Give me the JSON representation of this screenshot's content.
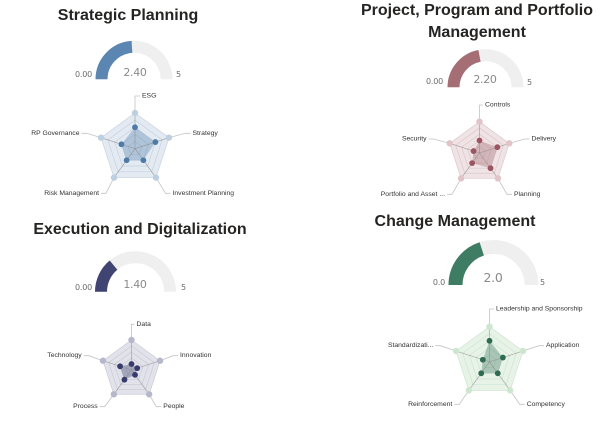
{
  "panels": [
    {
      "title_lines": [
        "Strategic Planning"
      ],
      "colors": {
        "accent": "#5B86B1",
        "dot": "#4E7AA7",
        "outer_dot": "#BDD0E2",
        "ring_fill": "#E3EAF2",
        "ring_stroke": "#C7D2DE",
        "track": "#EFEFEF"
      }
    },
    {
      "title_lines": [
        "Project, Program and Portfolio",
        "Management"
      ],
      "colors": {
        "accent": "#A46E74",
        "dot": "#9B5560",
        "outer_dot": "#E2C3C7",
        "ring_fill": "#F0E3E5",
        "ring_stroke": "#DCC8CB",
        "track": "#EFEFEF"
      }
    },
    {
      "title_lines": [
        "Execution and Digitalization"
      ],
      "colors": {
        "accent": "#3F4472",
        "dot": "#363B6C",
        "outer_dot": "#B5B7CA",
        "ring_fill": "#E2E3EA",
        "ring_stroke": "#C9CAD6",
        "track": "#EFEFEF"
      }
    },
    {
      "title_lines": [
        "Change Management"
      ],
      "colors": {
        "accent": "#3F7C64",
        "dot": "#2F6B52",
        "outer_dot": "#CDE6CE",
        "ring_fill": "#E8F3E8",
        "ring_stroke": "#CFE4D0",
        "track": "#EFEFEF"
      }
    }
  ],
  "chart_data": [
    {
      "type": "gauge",
      "title": "Strategic Planning",
      "value": 2.4,
      "min": 0,
      "max": 5,
      "labels": {
        "min": "0.00",
        "value": "2.40",
        "max": "5"
      }
    },
    {
      "type": "radar",
      "title": "Strategic Planning",
      "categories": [
        "ESG",
        "Strategy",
        "Investment Planning",
        "Risk Management",
        "RP Governance"
      ],
      "values": [
        3,
        3,
        2,
        2,
        2
      ],
      "range": [
        0,
        5
      ],
      "rings": 5
    },
    {
      "type": "gauge",
      "title": "Project, Program and Portfolio Management",
      "value": 2.2,
      "min": 0,
      "max": 5,
      "labels": {
        "min": "0.00",
        "value": "2.20",
        "max": "5"
      }
    },
    {
      "type": "radar",
      "title": "Project, Program and Portfolio Management",
      "categories": [
        "Controls",
        "Delivery",
        "Planning",
        "Portfolio and Asset ...",
        "Security"
      ],
      "values": [
        2,
        3,
        3,
        2,
        1
      ],
      "range": [
        0,
        5
      ],
      "rings": 5
    },
    {
      "type": "gauge",
      "title": "Execution and Digitalization",
      "value": 1.4,
      "min": 0,
      "max": 5,
      "labels": {
        "min": "0.00",
        "value": "1.40",
        "max": "5"
      }
    },
    {
      "type": "radar",
      "title": "Execution and Digitalization",
      "categories": [
        "Data",
        "Innovation",
        "People",
        "Process",
        "Technology"
      ],
      "values": [
        1,
        1,
        1,
        2,
        2
      ],
      "range": [
        0,
        5
      ],
      "rings": 5
    },
    {
      "type": "gauge",
      "title": "Change Management",
      "value": 2.0,
      "min": 0,
      "max": 5,
      "labels": {
        "min": "0.0",
        "value": "2.0",
        "max": "5"
      }
    },
    {
      "type": "radar",
      "title": "Change Management",
      "categories": [
        "Leadership and Sponsorship",
        "Application",
        "Competency",
        "Reinforcement",
        "Standardizati..."
      ],
      "values": [
        3,
        2,
        2,
        2,
        1
      ],
      "range": [
        0,
        5
      ],
      "rings": 5
    }
  ]
}
